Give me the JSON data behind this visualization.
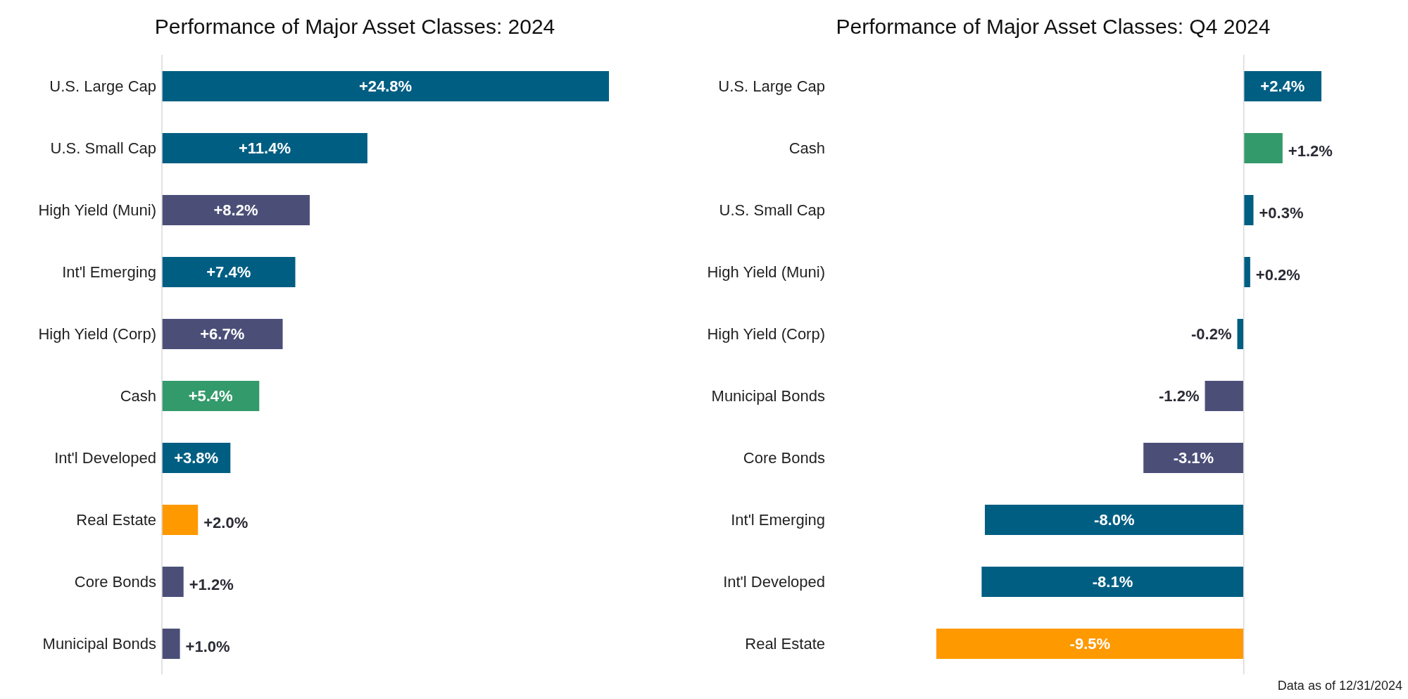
{
  "chart_data": [
    {
      "type": "bar",
      "orientation": "horizontal",
      "title": "Performance of Major Asset Classes: 2024",
      "categories": [
        "U.S. Large Cap",
        "U.S. Small Cap",
        "High Yield (Muni)",
        "Int'l Emerging",
        "High Yield (Corp)",
        "Cash",
        "Int'l Developed",
        "Real Estate",
        "Core Bonds",
        "Municipal Bonds"
      ],
      "values": [
        24.8,
        11.4,
        8.2,
        7.4,
        6.7,
        5.4,
        3.8,
        2.0,
        1.2,
        1.0
      ],
      "colors": [
        "#005e83",
        "#005e83",
        "#4b4f78",
        "#005e83",
        "#4b4f78",
        "#339a6b",
        "#005e83",
        "#ff9900",
        "#4b4f78",
        "#4b4f78"
      ],
      "value_labels": [
        "+24.8%",
        "+11.4%",
        "+8.2%",
        "+7.4%",
        "+6.7%",
        "+5.4%",
        "+3.8%",
        "+2.0%",
        "+1.2%",
        "+1.0%"
      ]
    },
    {
      "type": "bar",
      "orientation": "horizontal",
      "title": "Performance of Major Asset Classes: Q4 2024",
      "categories": [
        "U.S. Large Cap",
        "Cash",
        "U.S. Small Cap",
        "High Yield (Muni)",
        "High Yield (Corp)",
        "Municipal Bonds",
        "Core Bonds",
        "Int'l Emerging",
        "Int'l Developed",
        "Real Estate"
      ],
      "values": [
        2.4,
        1.2,
        0.3,
        0.2,
        -0.2,
        -1.2,
        -3.1,
        -8.0,
        -8.1,
        -9.5
      ],
      "colors": [
        "#005e83",
        "#339a6b",
        "#005e83",
        "#005e83",
        "#005e83",
        "#4b4f78",
        "#4b4f78",
        "#005e83",
        "#005e83",
        "#ff9900"
      ],
      "value_labels": [
        "+2.4%",
        "+1.2%",
        "+0.3%",
        "+0.2%",
        "-0.2%",
        "-1.2%",
        "-3.1%",
        "-8.0%",
        "-8.1%",
        "-9.5%"
      ],
      "annotations": [
        "Data as of 12/31/2024"
      ]
    }
  ]
}
